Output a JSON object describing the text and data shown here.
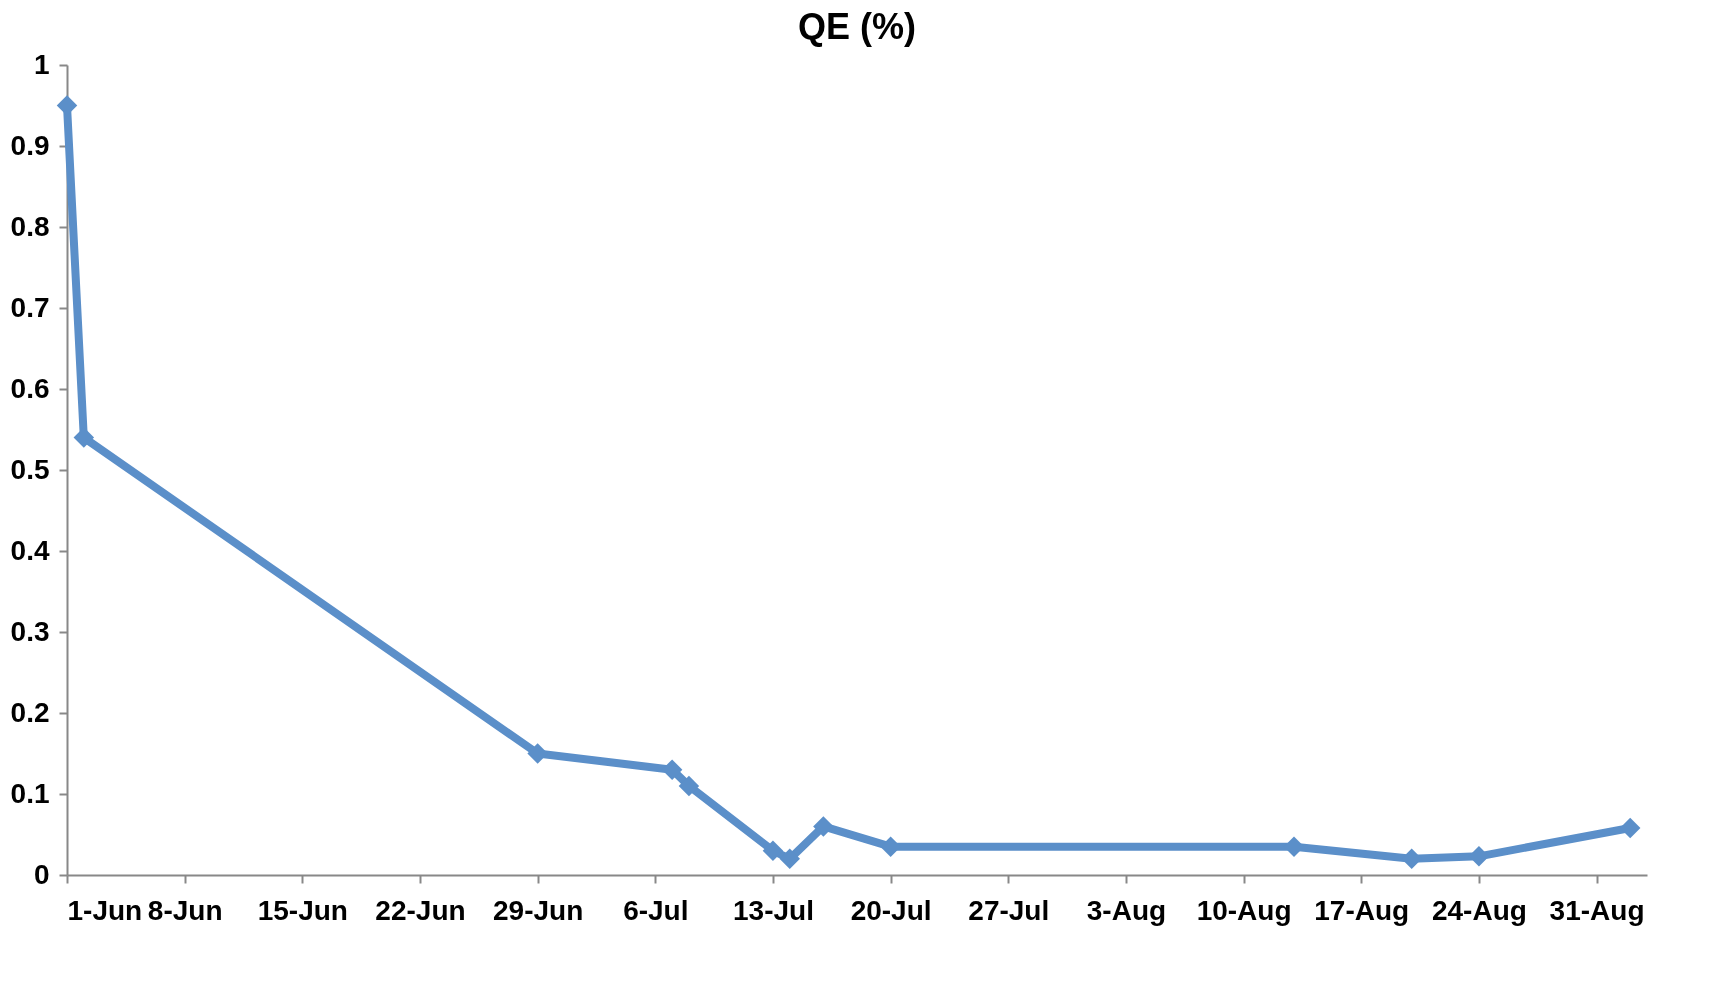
{
  "chart_data": {
    "type": "line",
    "title": "QE (%)",
    "x": [
      "--06-01",
      "--06-02",
      "--06-29",
      "--07-07",
      "--07-08",
      "--07-13",
      "--07-14",
      "--07-16",
      "--07-20",
      "--08-13",
      "--08-20",
      "--08-24",
      "--09-02"
    ],
    "series": [
      {
        "color": "#5b8fc9",
        "values": [
          0.95,
          0.54,
          0.15,
          0.13,
          0.11,
          0.03,
          0.02,
          0.06,
          0.035,
          0.035,
          0.02,
          0.023,
          0.058
        ]
      }
    ],
    "xlim": [
      "--06-01",
      "--09-03"
    ],
    "xticks": [
      {
        "value": "--06-01",
        "label": "1-Jun"
      },
      {
        "value": "--06-08",
        "label": "8-Jun"
      },
      {
        "value": "--06-15",
        "label": "15-Jun"
      },
      {
        "value": "--06-22",
        "label": "22-Jun"
      },
      {
        "value": "--06-29",
        "label": "29-Jun"
      },
      {
        "value": "--07-06",
        "label": "6-Jul"
      },
      {
        "value": "--07-13",
        "label": "13-Jul"
      },
      {
        "value": "--07-20",
        "label": "20-Jul"
      },
      {
        "value": "--07-27",
        "label": "27-Jul"
      },
      {
        "value": "--08-03",
        "label": "3-Aug"
      },
      {
        "value": "--08-10",
        "label": "10-Aug"
      },
      {
        "value": "--08-17",
        "label": "17-Aug"
      },
      {
        "value": "--08-24",
        "label": "24-Aug"
      },
      {
        "value": "--08-31",
        "label": "31-Aug"
      }
    ],
    "ylim": [
      0,
      1
    ],
    "yticks": [
      0,
      0.1,
      0.2,
      0.3,
      0.4,
      0.5,
      0.6,
      0.7,
      0.8,
      0.9,
      1
    ],
    "marker": "diamond",
    "line_style": "solid",
    "grid": false
  }
}
